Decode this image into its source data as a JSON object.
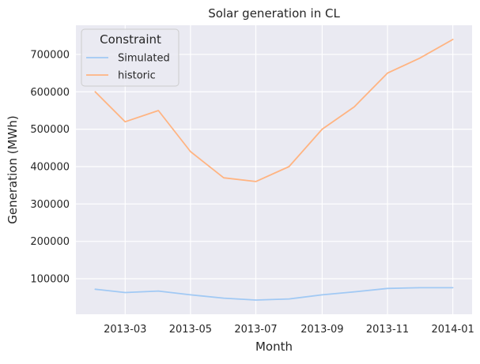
{
  "chart_data": {
    "type": "line",
    "title": "Solar generation in CL",
    "xlabel": "Month",
    "ylabel": "Generation (MWh)",
    "x": [
      "2013-02-01",
      "2013-03-01",
      "2013-04-01",
      "2013-05-01",
      "2013-06-01",
      "2013-07-01",
      "2013-08-01",
      "2013-09-01",
      "2013-10-01",
      "2013-11-01",
      "2013-12-01",
      "2014-01-01"
    ],
    "x_ticks": [
      "2013-03",
      "2013-05",
      "2013-07",
      "2013-09",
      "2013-11",
      "2014-01"
    ],
    "y_ticks": [
      100000,
      200000,
      300000,
      400000,
      500000,
      600000,
      700000
    ],
    "y_tick_labels": [
      "100000",
      "200000",
      "300000",
      "400000",
      "500000",
      "600000",
      "700000"
    ],
    "ylim": [
      5000,
      778000
    ],
    "xlim": [
      "2013-01-14",
      "2014-01-19"
    ],
    "grid": true,
    "legend": {
      "title": "Constraint",
      "placement": "top-left"
    },
    "series": [
      {
        "name": "Simulated",
        "color": "#a1c9f4",
        "values": [
          72000,
          63000,
          67000,
          57000,
          48000,
          43000,
          46000,
          57000,
          65000,
          74000,
          76000,
          76000
        ]
      },
      {
        "name": "historic",
        "color": "#ffb482",
        "values": [
          600000,
          520000,
          550000,
          440000,
          370000,
          360000,
          400000,
          500000,
          560000,
          650000,
          690000,
          740000
        ]
      }
    ],
    "colors": {
      "plot_background": "#eaeaf2",
      "grid": "#ffffff",
      "text": "#262626"
    }
  }
}
